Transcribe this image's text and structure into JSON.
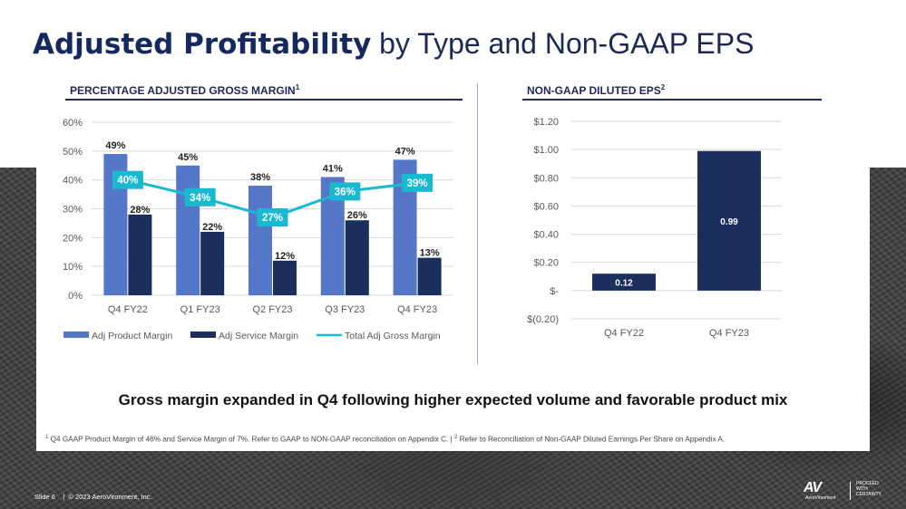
{
  "title": {
    "bold": "Adjusted Profitability",
    "rest": " by Type and Non-GAAP EPS"
  },
  "left_section": {
    "title": "PERCENTAGE ADJUSTED GROSS MARGIN",
    "sup": "1"
  },
  "right_section": {
    "title": "NON-GAAP DILUTED EPS",
    "sup": "2"
  },
  "headline": "Gross margin expanded in Q4 following higher expected volume and favorable product mix",
  "footnote": {
    "sup1": "1",
    "text1": " Q4 GAAP Product Margin of 46% and Service Margin of 7%. Refer to GAAP to NON-GAAP reconciliation on Appendix C.  |  ",
    "sup2": "2",
    "text2": " Refer to Reconciliation of Non-GAAP Diluted Earnings Per Share on Appendix A."
  },
  "footer": {
    "slide": "Slide 6",
    "sep": "|",
    "copyright": "© 2023 AeroVironment, Inc."
  },
  "logo": {
    "mark": "AV",
    "name": "AeroVironment",
    "tagline": "PROCEED\nWITH\nCERTAINTY"
  },
  "colors": {
    "product": "#5677c7",
    "service": "#1b2f5c",
    "total": "#19b9d1",
    "eps": "#1b2f5c",
    "title": "#15295e"
  },
  "chart_data": [
    {
      "type": "bar",
      "title": "PERCENTAGE ADJUSTED GROSS MARGIN",
      "categories": [
        "Q4 FY22",
        "Q1 FY23",
        "Q2 FY23",
        "Q3 FY23",
        "Q4 FY23"
      ],
      "series": [
        {
          "name": "Adj Product Margin",
          "kind": "bar",
          "values": [
            49,
            45,
            38,
            41,
            47
          ],
          "labels": [
            "49%",
            "45%",
            "38%",
            "41%",
            "47%"
          ]
        },
        {
          "name": "Adj Service Margin",
          "kind": "bar",
          "values": [
            28,
            22,
            12,
            26,
            13
          ],
          "labels": [
            "28%",
            "22%",
            "12%",
            "26%",
            "13%"
          ]
        },
        {
          "name": "Total Adj Gross Margin",
          "kind": "line",
          "values": [
            40,
            34,
            27,
            36,
            39
          ],
          "labels": [
            "40%",
            "34%",
            "27%",
            "36%",
            "39%"
          ]
        }
      ],
      "ylim": [
        0,
        60
      ],
      "yticks": [
        0,
        10,
        20,
        30,
        40,
        50,
        60
      ],
      "ytick_labels": [
        "0%",
        "10%",
        "20%",
        "30%",
        "40%",
        "50%",
        "60%"
      ],
      "grid": true,
      "legend": "bottom"
    },
    {
      "type": "bar",
      "title": "NON-GAAP DILUTED EPS",
      "categories": [
        "Q4 FY22",
        "Q4 FY23"
      ],
      "values": [
        0.12,
        0.99
      ],
      "labels": [
        "0.12",
        "0.99"
      ],
      "ylim": [
        -0.2,
        1.2
      ],
      "yticks": [
        -0.2,
        0,
        0.2,
        0.4,
        0.6,
        0.8,
        1.0,
        1.2
      ],
      "ytick_labels": [
        "$(0.20)",
        "$-",
        "$0.20",
        "$0.40",
        "$0.60",
        "$0.80",
        "$1.00",
        "$1.20"
      ],
      "grid": true
    }
  ]
}
